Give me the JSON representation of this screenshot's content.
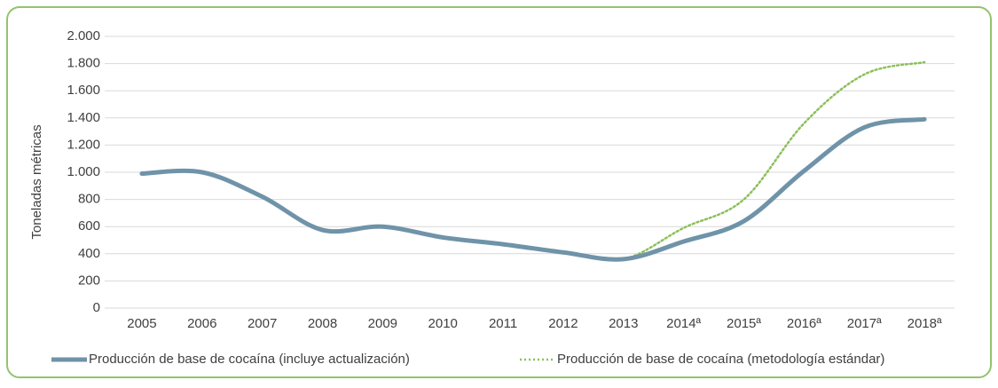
{
  "chart_data": {
    "type": "line",
    "y_label": "Toneladas métricas",
    "categories": [
      "2005",
      "2006",
      "2007",
      "2008",
      "2009",
      "2010",
      "2011",
      "2012",
      "2013",
      "2014ª",
      "2015ª",
      "2016ª",
      "2017ª",
      "2018ª"
    ],
    "series": [
      {
        "name": "Producción de base de cocaína (incluye actualización)",
        "color": "#6f93a8",
        "values": [
          990,
          1000,
          820,
          575,
          600,
          520,
          470,
          410,
          360,
          490,
          640,
          1010,
          1330,
          1390
        ]
      },
      {
        "name": "Producción de base de cocaína (metodología estándar)",
        "color": "#8cc05a",
        "values": [
          990,
          1000,
          820,
          575,
          600,
          520,
          470,
          410,
          360,
          590,
          800,
          1360,
          1720,
          1810
        ]
      }
    ],
    "ylim": [
      0,
      2000
    ],
    "yticks": [
      0,
      200,
      400,
      600,
      800,
      {
        "value": 1000,
        "label": "1.000"
      },
      {
        "value": 1200,
        "label": "1.200"
      },
      {
        "value": 1400,
        "label": "1.400"
      },
      {
        "value": 1600,
        "label": "1.600"
      },
      {
        "value": 1800,
        "label": "1.800"
      },
      {
        "value": 2000,
        "label": "2.000"
      }
    ],
    "grid": true,
    "legend": "bottom"
  }
}
